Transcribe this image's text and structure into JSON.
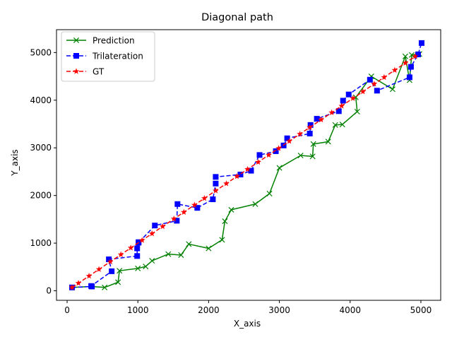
{
  "chart_data": {
    "type": "line",
    "title": "Diagonal path",
    "xlabel": "X_axis",
    "ylabel": "Y_axis",
    "xlim": [
      -150,
      5280
    ],
    "ylim": [
      -200,
      5480
    ],
    "xticks": [
      0,
      1000,
      2000,
      3000,
      4000,
      5000
    ],
    "xtick_labels": [
      "0",
      "1000",
      "2000",
      "3000",
      "4000",
      "5000"
    ],
    "yticks": [
      0,
      1000,
      2000,
      3000,
      4000,
      5000
    ],
    "ytick_labels": [
      "0",
      "1000",
      "2000",
      "3000",
      "4000",
      "5000"
    ],
    "grid": false,
    "legend_position": "top-left",
    "series": [
      {
        "name": "Prediction",
        "color": "#008000",
        "linestyle": "solid",
        "marker": "x",
        "x": [
          70,
          350,
          530,
          720,
          740,
          1000,
          1110,
          1200,
          1430,
          1610,
          1720,
          2000,
          2190,
          2230,
          2320,
          2660,
          2860,
          3000,
          3300,
          3470,
          3480,
          3690,
          3790,
          3890,
          4100,
          4080,
          4300,
          4600,
          4780,
          4840,
          4870,
          4980
        ],
        "y": [
          70,
          90,
          70,
          180,
          420,
          470,
          510,
          630,
          770,
          750,
          980,
          890,
          1070,
          1460,
          1700,
          1820,
          2040,
          2580,
          2840,
          2820,
          3080,
          3130,
          3480,
          3490,
          3760,
          4060,
          4500,
          4230,
          4920,
          4420,
          4950,
          4970
        ]
      },
      {
        "name": "Trilateration",
        "color": "#0000ff",
        "linestyle": "dashed",
        "marker": "square",
        "x": [
          70,
          350,
          340,
          630,
          590,
          990,
          990,
          1010,
          1010,
          1240,
          1550,
          1560,
          1840,
          2060,
          2100,
          2100,
          2450,
          2600,
          2720,
          2950,
          3060,
          3110,
          3430,
          3440,
          3530,
          3840,
          3900,
          3980,
          4280,
          4380,
          4840,
          4860,
          4960,
          5010
        ],
        "y": [
          70,
          90,
          100,
          410,
          660,
          730,
          890,
          1020,
          1010,
          1370,
          1470,
          1820,
          1740,
          1920,
          2250,
          2390,
          2440,
          2520,
          2850,
          2930,
          3050,
          3200,
          3300,
          3480,
          3610,
          3770,
          3990,
          4120,
          4430,
          4200,
          4480,
          4700,
          4960,
          5200
        ]
      },
      {
        "name": "GT",
        "color": "#ff0000",
        "linestyle": "dashed",
        "marker": "star",
        "x": [
          70,
          160,
          310,
          450,
          610,
          760,
          900,
          1060,
          1200,
          1350,
          1510,
          1650,
          1800,
          1940,
          2100,
          2250,
          2400,
          2550,
          2700,
          2850,
          2990,
          3140,
          3290,
          3430,
          3590,
          3740,
          3880,
          4040,
          4180,
          4340,
          4480,
          4630,
          4780,
          4920
        ],
        "y": [
          70,
          160,
          310,
          450,
          610,
          760,
          900,
          1060,
          1200,
          1350,
          1510,
          1650,
          1800,
          1940,
          2100,
          2250,
          2400,
          2550,
          2700,
          2850,
          2990,
          3140,
          3290,
          3430,
          3590,
          3740,
          3880,
          4040,
          4180,
          4340,
          4480,
          4630,
          4780,
          4920
        ]
      }
    ]
  }
}
